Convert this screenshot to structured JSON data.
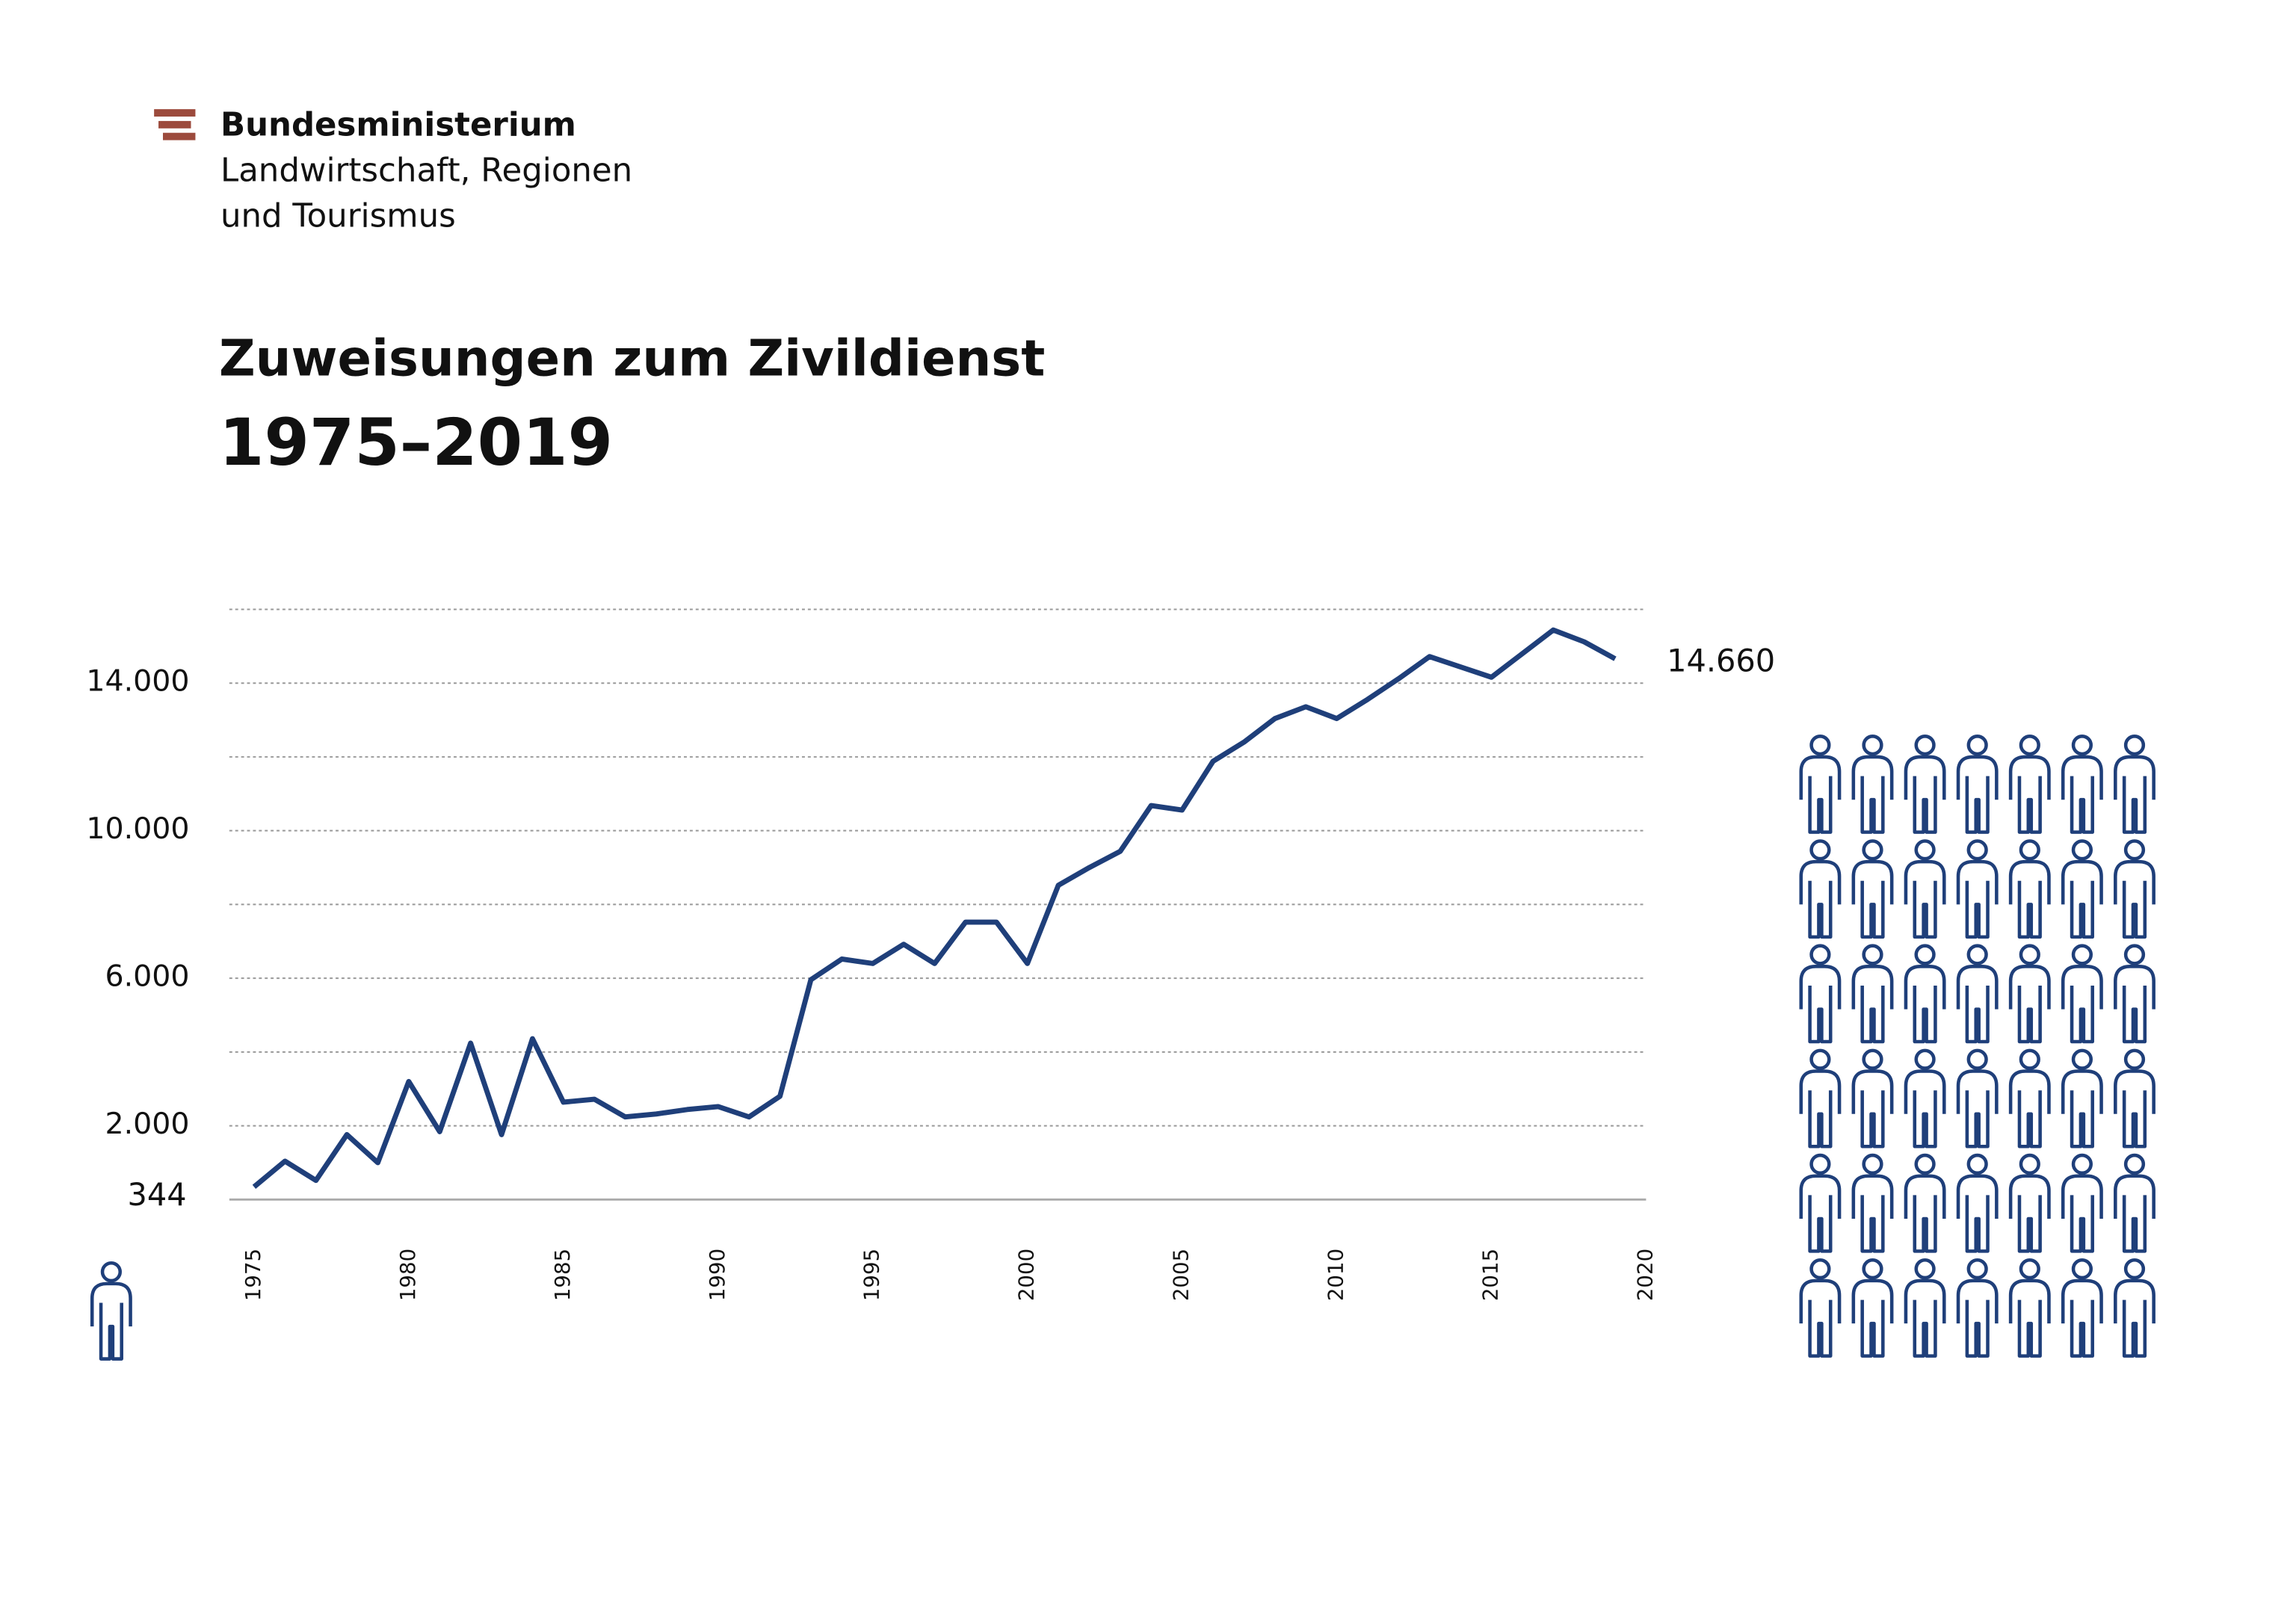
{
  "header": {
    "ministry": [
      "Bundesministerium",
      "Landwirtschaft, Regionen",
      "und Tourismus"
    ]
  },
  "chart_data": {
    "type": "line",
    "title": "Zuweisungen zum Zivildienst",
    "subtitle": "1975–2019",
    "x": [
      1975,
      1976,
      1977,
      1978,
      1979,
      1980,
      1981,
      1982,
      1983,
      1984,
      1985,
      1986,
      1987,
      1988,
      1989,
      1990,
      1991,
      1992,
      1993,
      1994,
      1995,
      1996,
      1997,
      1998,
      1999,
      2000,
      2001,
      2002,
      2003,
      2004,
      2005,
      2006,
      2007,
      2008,
      2009,
      2010,
      2011,
      2012,
      2013,
      2014,
      2015,
      2016,
      2017,
      2018,
      2019
    ],
    "series": [
      {
        "name": "Zuweisungen",
        "color": "#1f3f7a",
        "values": [
          344,
          1040,
          520,
          1760,
          1000,
          3200,
          1840,
          4240,
          1760,
          4360,
          2640,
          2720,
          2240,
          2320,
          2440,
          2520,
          2240,
          2800,
          5960,
          6520,
          6400,
          6920,
          6400,
          7520,
          7520,
          6400,
          8520,
          9000,
          9440,
          10680,
          10560,
          11880,
          12400,
          13040,
          13360,
          13040,
          13560,
          14120,
          14720,
          14440,
          14160,
          14800,
          15440,
          15120,
          14660
        ],
        "value_labels": [
          "344",
          null,
          null,
          null,
          null,
          null,
          null,
          null,
          null,
          null,
          null,
          null,
          null,
          null,
          null,
          null,
          null,
          null,
          null,
          null,
          null,
          null,
          null,
          null,
          null,
          null,
          null,
          null,
          null,
          null,
          null,
          null,
          null,
          null,
          null,
          null,
          null,
          null,
          null,
          null,
          null,
          null,
          null,
          null,
          "14.660"
        ]
      }
    ],
    "xlim": [
      1974.2,
      2020
    ],
    "xticks": [
      1975,
      1980,
      1985,
      1990,
      1995,
      2000,
      2005,
      2010,
      2015,
      2020
    ],
    "ylim": [
      0,
      16000
    ],
    "yticks": [
      {
        "value": 2000,
        "label": "2.000"
      },
      {
        "value": 6000,
        "label": "6.000"
      },
      {
        "value": 10000,
        "label": "10.000"
      },
      {
        "value": 14000,
        "label": "14.000"
      }
    ],
    "grid_values": [
      0,
      2000,
      4000,
      6000,
      8000,
      10000,
      12000,
      14000,
      16000
    ],
    "grid": true
  }
}
